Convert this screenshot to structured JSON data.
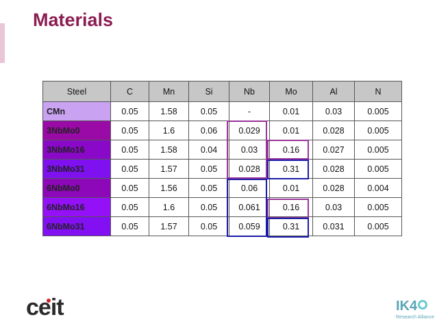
{
  "header": {
    "title": "Materials"
  },
  "table": {
    "columns": [
      "Steel",
      "C",
      "Mn",
      "Si",
      "Nb",
      "Mo",
      "Al",
      "N"
    ],
    "rows": [
      [
        "CMn",
        "0.05",
        "1.58",
        "0.05",
        "-",
        "0.01",
        "0.03",
        "0.005"
      ],
      [
        "3NbMo0",
        "0.05",
        "1.6",
        "0.06",
        "0.029",
        "0.01",
        "0.028",
        "0.005"
      ],
      [
        "3NbMo16",
        "0.05",
        "1.58",
        "0.04",
        "0.03",
        "0.16",
        "0.027",
        "0.005"
      ],
      [
        "3NbMo31",
        "0.05",
        "1.57",
        "0.05",
        "0.028",
        "0.31",
        "0.028",
        "0.005"
      ],
      [
        "6NbMo0",
        "0.05",
        "1.56",
        "0.05",
        "0.06",
        "0.01",
        "0.028",
        "0.004"
      ],
      [
        "6NbMo16",
        "0.05",
        "1.6",
        "0.05",
        "0.061",
        "0.16",
        "0.03",
        "0.005"
      ],
      [
        "6NbMo31",
        "0.05",
        "1.57",
        "0.05",
        "0.059",
        "0.31",
        "0.031",
        "0.005"
      ]
    ]
  },
  "footer": {
    "left_logo": "ceit",
    "right_logo": "IK4",
    "right_logo_subtitle": "Research Alliance"
  }
}
